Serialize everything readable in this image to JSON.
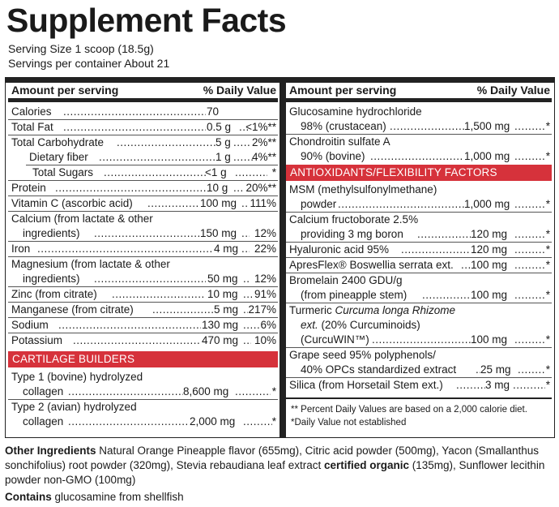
{
  "title": "Supplement Facts",
  "serving_size": "Serving Size 1 scoop (18.5g)",
  "servings_per_container": "Servings per container About 21",
  "left_header": {
    "amount": "Amount per serving",
    "dv": "% Daily Value"
  },
  "right_header": {
    "amount": "Amount per serving",
    "dv": "% Daily Value"
  },
  "nutrients": [
    {
      "name": "Calories",
      "amount": "70",
      "dv": ""
    },
    {
      "name": "Total Fat",
      "amount": "0.5 g",
      "dv": "<1%**"
    },
    {
      "name": "Total Carbohydrate",
      "amount": "5 g",
      "dv": "2%**"
    },
    {
      "name": "Dietary fiber",
      "amount": "1 g",
      "dv": "4%**"
    },
    {
      "name": "Total Sugars",
      "amount": "<1 g",
      "dv": "*"
    },
    {
      "name": "Protein",
      "amount": "10 g",
      "dv": "20%**"
    },
    {
      "name": "Vitamin C (ascorbic acid)",
      "amount": "100 mg",
      "dv": "111%"
    },
    {
      "name": "Calcium (from lactate & other",
      "name2": "ingredients)",
      "amount": "150 mg",
      "dv": "12%"
    },
    {
      "name": "Iron",
      "amount": "4 mg",
      "dv": "22%"
    },
    {
      "name": "Magnesium (from lactate & other",
      "name2": "ingredients)",
      "amount": "50 mg",
      "dv": "12%"
    },
    {
      "name": "Zinc (from citrate)",
      "amount": "10 mg",
      "dv": "91%"
    },
    {
      "name": "Manganese (from citrate)",
      "amount": "5 mg",
      "dv": "217%"
    },
    {
      "name": "Sodium",
      "amount": "130 mg",
      "dv": "6%"
    },
    {
      "name": "Potassium",
      "amount": "470 mg",
      "dv": "10%"
    }
  ],
  "cartilage": {
    "label": "CARTILAGE BUILDERS",
    "items": [
      {
        "name": "Type 1 (bovine) hydrolyzed",
        "name2": "collagen",
        "amount": "8,600 mg",
        "dv": "*"
      },
      {
        "name": "Type 2 (avian) hydrolyzed",
        "name2": "collagen",
        "amount": "2,000 mg",
        "dv": "*"
      }
    ]
  },
  "right_items": [
    {
      "name": "Glucosamine hydrochloride",
      "name2": "98% (crustacean)",
      "amount": "1,500 mg",
      "dv": "*"
    },
    {
      "name": "Chondroitin sulfate A",
      "name2": "90% (bovine)",
      "amount": "1,000 mg",
      "dv": "*"
    }
  ],
  "antioxidants": {
    "label": "ANTIOXIDANTS/FLEXIBILITY FACTORS",
    "msm": {
      "name": "MSM (methylsulfonylmethane)",
      "name2": "powder",
      "amount": "1,000 mg",
      "dv": "*"
    },
    "calcium_fructoborate": {
      "name": "Calcium fructoborate 2.5%",
      "name2": "providing 3 mg boron",
      "amount": "120 mg",
      "dv": "*"
    },
    "hyaluronic": {
      "name": "Hyaluronic acid 95%",
      "amount": "120 mg",
      "dv": "*"
    },
    "apresflex": {
      "name": "ApresFlex® Boswellia serrata ext.",
      "amount": "100 mg",
      "dv": "*"
    },
    "bromelain": {
      "name": "Bromelain 2400 GDU/g",
      "name2": "(from pineapple stem)",
      "amount": "100 mg",
      "dv": "*"
    },
    "turmeric": {
      "name_a": "Turmeric ",
      "name_b": "Curcuma longa Rhizome",
      "name2_a": "ext.",
      "name2_b": " (20% Curcuminoids)",
      "name3": "(CurcuWIN™)",
      "amount": "100 mg",
      "dv": "*"
    },
    "grape": {
      "name": "Grape seed 95% polyphenols/",
      "name2": "40% OPCs standardized extract",
      "amount": "25 mg",
      "dv": "*"
    },
    "silica": {
      "name": "Silica (from Horsetail Stem ext.)",
      "amount": "3 mg",
      "dv": "*"
    }
  },
  "footnotes": {
    "dv_note": "** Percent Daily Values are based on a 2,000 calorie diet.",
    "not_established": "*Daily Value not established"
  },
  "other_ingredients": {
    "label": "Other Ingredients",
    "text1": " Natural Orange Pineapple flavor (655mg), Citric acid powder (500mg), Yacon (Smallanthus",
    "text2": "sonchifolius) root powder (320mg), Stevia rebaudiana leaf extract ",
    "bold2": "certified organic",
    "text2b": " (135mg), Sunflower lecithin",
    "text3": "powder non-GMO (100mg)"
  },
  "contains": {
    "label": "Contains",
    "text": " glucosamine from shellfish"
  }
}
